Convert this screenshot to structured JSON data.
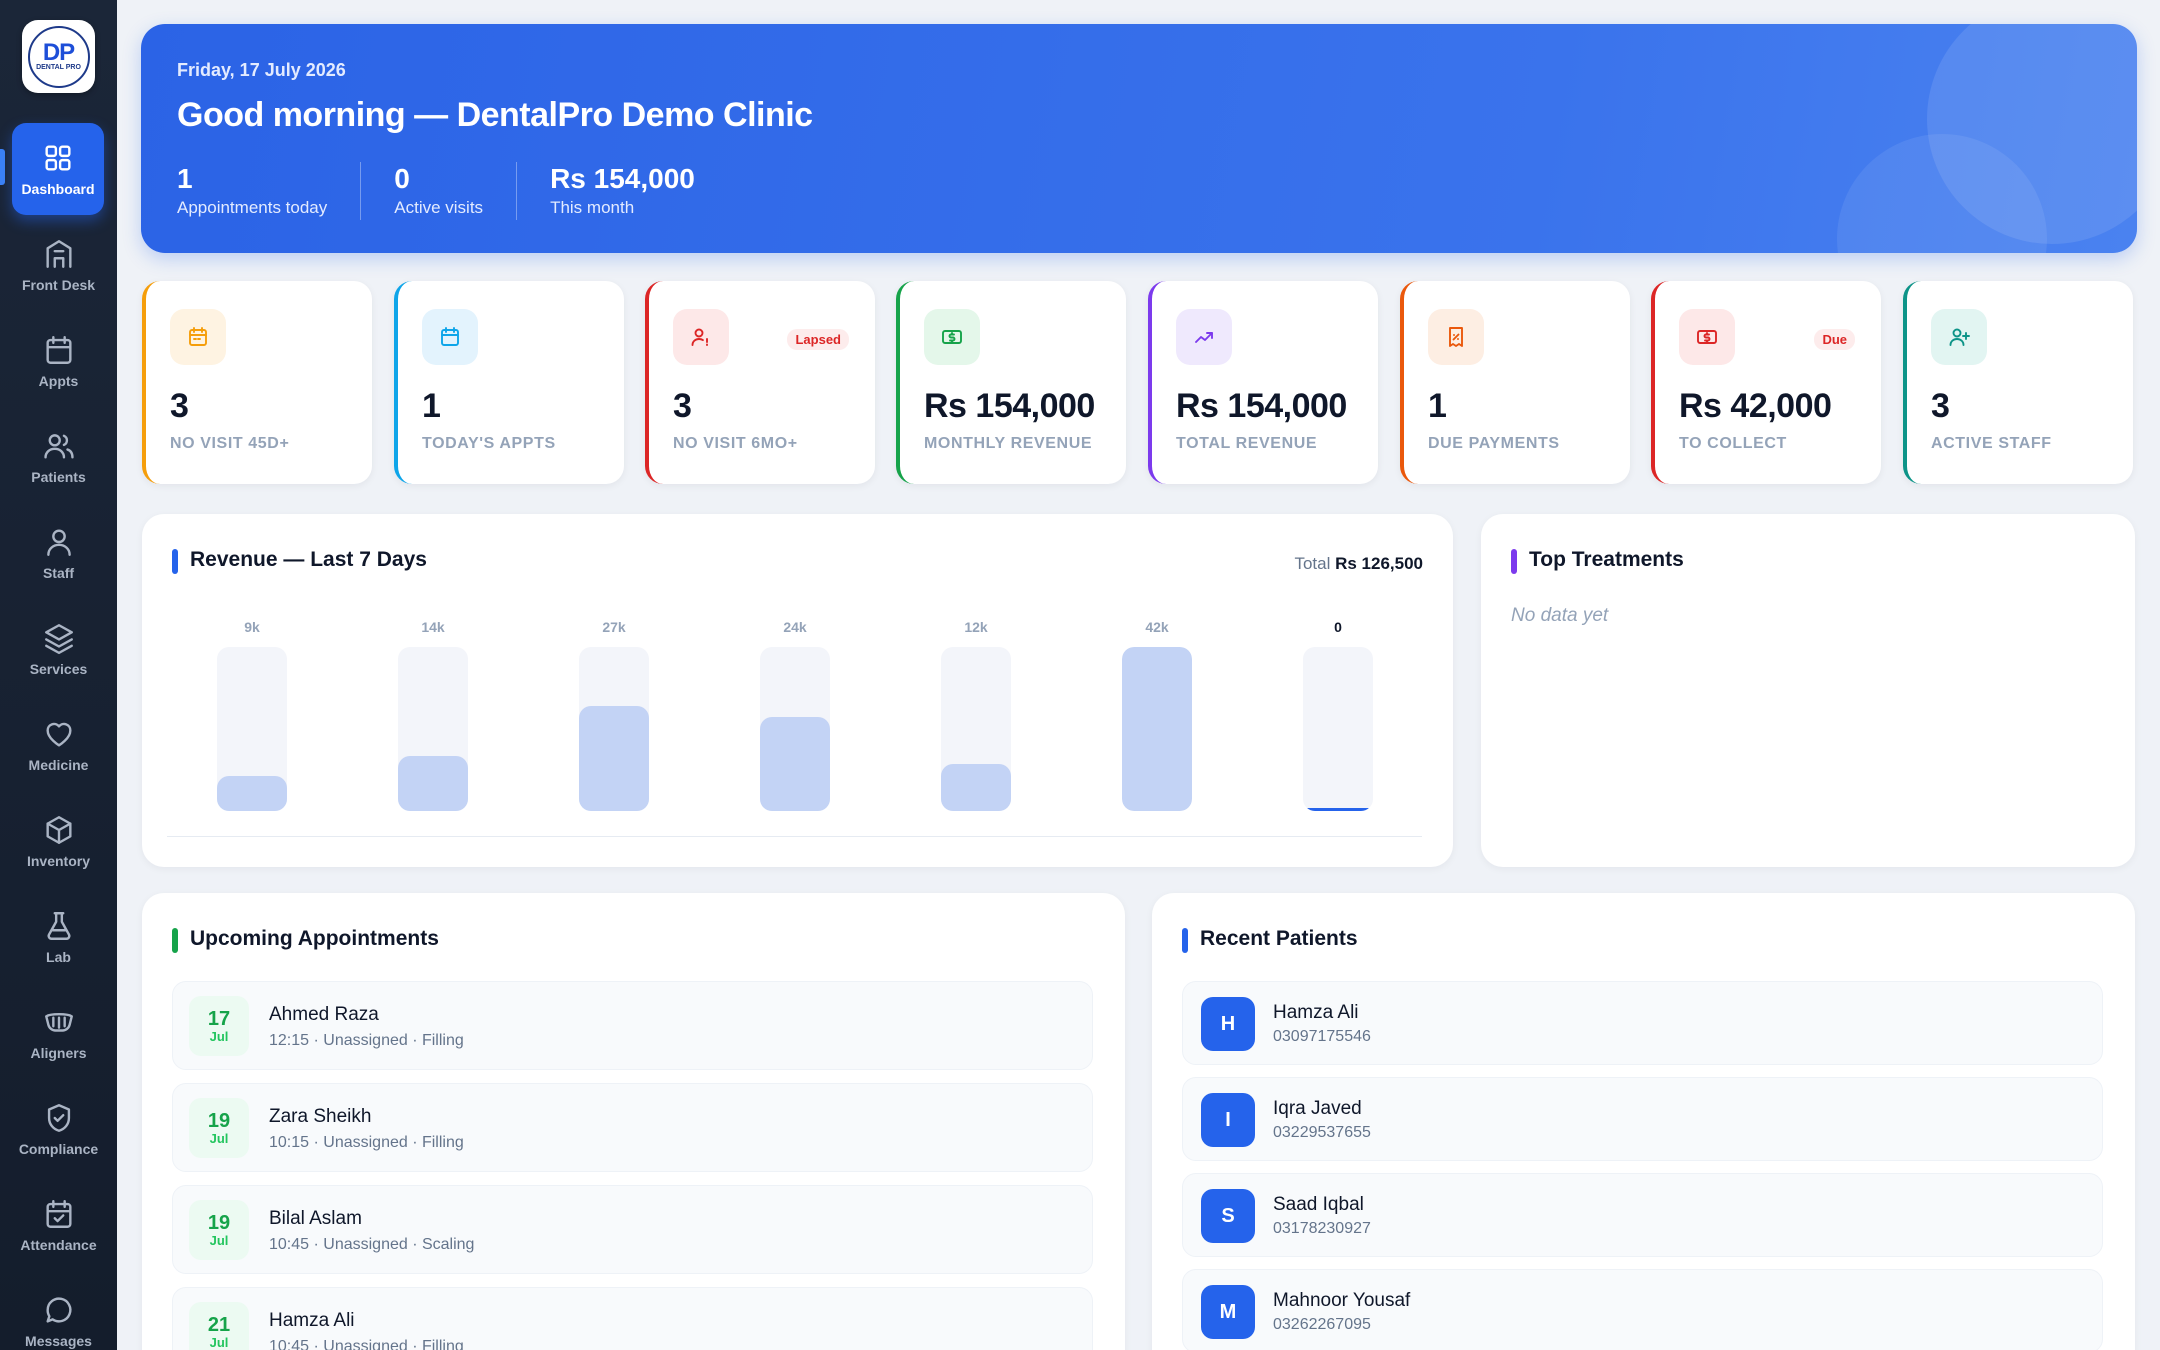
{
  "sidebar": {
    "logo_text": "DP",
    "logo_caption": "DENTAL PRO",
    "items": [
      {
        "label": "Dashboard",
        "icon": "grid-icon"
      },
      {
        "label": "Front Desk",
        "icon": "building-icon"
      },
      {
        "label": "Appts",
        "icon": "calendar-icon"
      },
      {
        "label": "Patients",
        "icon": "users-icon"
      },
      {
        "label": "Staff",
        "icon": "user-icon"
      },
      {
        "label": "Services",
        "icon": "layers-icon"
      },
      {
        "label": "Medicine",
        "icon": "heart-icon"
      },
      {
        "label": "Inventory",
        "icon": "box-icon"
      },
      {
        "label": "Lab",
        "icon": "flask-icon"
      },
      {
        "label": "Aligners",
        "icon": "aligner-icon"
      },
      {
        "label": "Compliance",
        "icon": "shield-check-icon"
      },
      {
        "label": "Attendance",
        "icon": "calendar-check-icon"
      },
      {
        "label": "Messages",
        "icon": "message-icon"
      }
    ]
  },
  "hero": {
    "date": "Friday, 17 July 2026",
    "greeting": "Good morning — DentalPro Demo Clinic",
    "stats": [
      {
        "value": "1",
        "label": "Appointments today"
      },
      {
        "value": "0",
        "label": "Active visits"
      },
      {
        "value": "Rs 154,000",
        "label": "This month"
      }
    ]
  },
  "stat_cards": [
    {
      "value": "3",
      "label": "NO VISIT 45D+",
      "badge": "",
      "icon": "calendar-icon",
      "color": "#f59e0b"
    },
    {
      "value": "1",
      "label": "TODAY'S APPTS",
      "badge": "",
      "icon": "calendar-icon",
      "color": "#0ea5e9"
    },
    {
      "value": "3",
      "label": "NO VISIT 6MO+",
      "badge": "Lapsed",
      "icon": "users-alert-icon",
      "color": "#dc2626"
    },
    {
      "value": "Rs 154,000",
      "label": "MONTHLY REVENUE",
      "badge": "",
      "icon": "cash-icon",
      "color": "#16a34a"
    },
    {
      "value": "Rs 154,000",
      "label": "TOTAL REVENUE",
      "badge": "",
      "icon": "trend-up-icon",
      "color": "#7c3aed"
    },
    {
      "value": "1",
      "label": "DUE PAYMENTS",
      "badge": "",
      "icon": "receipt-icon",
      "color": "#ea580c"
    },
    {
      "value": "Rs 42,000",
      "label": "TO COLLECT",
      "badge": "Due",
      "icon": "cash-icon",
      "color": "#dc2626"
    },
    {
      "value": "3",
      "label": "ACTIVE STAFF",
      "badge": "",
      "icon": "user-plus-icon",
      "color": "#0d9488"
    }
  ],
  "revenue": {
    "title": "Revenue — Last 7 Days",
    "total_label": "Total",
    "total_value": "Rs 126,500"
  },
  "chart_data": {
    "type": "bar",
    "title": "Revenue — Last 7 Days",
    "tick_labels": [
      "9k",
      "14k",
      "27k",
      "24k",
      "12k",
      "42k",
      "0"
    ],
    "values": [
      9000,
      14000,
      27000,
      24000,
      12000,
      42000,
      0
    ],
    "ylim": [
      0,
      42000
    ],
    "bar_color": "#c3d3f5"
  },
  "top_treatments": {
    "title": "Top Treatments",
    "empty_text": "No data yet"
  },
  "appointments": {
    "title": "Upcoming Appointments",
    "rows": [
      {
        "day": "17",
        "month": "Jul",
        "name": "Ahmed Raza",
        "detail": "12:15 · Unassigned · Filling"
      },
      {
        "day": "19",
        "month": "Jul",
        "name": "Zara Sheikh",
        "detail": "10:15 · Unassigned · Filling"
      },
      {
        "day": "19",
        "month": "Jul",
        "name": "Bilal Aslam",
        "detail": "10:45 · Unassigned · Scaling"
      },
      {
        "day": "21",
        "month": "Jul",
        "name": "Hamza Ali",
        "detail": "10:45 · Unassigned · Filling"
      }
    ]
  },
  "patients": {
    "title": "Recent Patients",
    "rows": [
      {
        "initial": "H",
        "name": "Hamza Ali",
        "phone": "03097175546"
      },
      {
        "initial": "I",
        "name": "Iqra Javed",
        "phone": "03229537655"
      },
      {
        "initial": "S",
        "name": "Saad Iqbal",
        "phone": "03178230927"
      },
      {
        "initial": "M",
        "name": "Mahnoor Yousaf",
        "phone": "03262267095"
      }
    ]
  },
  "colors": {
    "primary": "#2563eb",
    "sidebar": "#1b2638",
    "success": "#16a34a",
    "danger": "#dc2626"
  }
}
